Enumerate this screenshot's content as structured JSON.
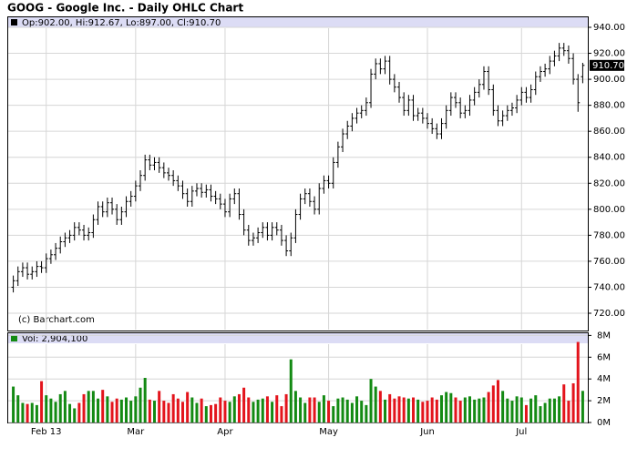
{
  "chart_data": {
    "type": "ohlc",
    "title": "GOOG - Google Inc. - Daily OHLC Chart",
    "legend_text": "Op:902.00, Hi:912.67, Lo:897.00, Cl:910.70",
    "last_price_label": "910.70",
    "credit": "(c) Barchart.com",
    "categories": [
      null,
      null,
      null,
      null,
      null,
      null,
      null,
      "Feb 13",
      null,
      null,
      null,
      null,
      null,
      null,
      null,
      null,
      null,
      null,
      null,
      null,
      null,
      null,
      null,
      null,
      null,
      null,
      "Mar",
      null,
      null,
      null,
      null,
      null,
      null,
      null,
      null,
      null,
      null,
      null,
      null,
      null,
      null,
      null,
      null,
      null,
      null,
      "Apr",
      null,
      null,
      null,
      null,
      null,
      null,
      null,
      null,
      null,
      null,
      null,
      null,
      null,
      null,
      null,
      null,
      null,
      null,
      null,
      null,
      null,
      "May",
      null,
      null,
      null,
      null,
      null,
      null,
      null,
      null,
      null,
      null,
      null,
      null,
      null,
      null,
      null,
      null,
      null,
      null,
      null,
      null,
      "Jun",
      null,
      null,
      null,
      null,
      null,
      null,
      null,
      null,
      null,
      null,
      null,
      null,
      null,
      null,
      null,
      null,
      null,
      null,
      null,
      "Jul",
      null,
      null,
      null,
      null,
      null,
      null,
      null,
      null,
      null,
      null,
      null,
      null,
      null
    ],
    "open": [
      740,
      745,
      752,
      755,
      750,
      752,
      756,
      755,
      762,
      765,
      770,
      775,
      778,
      780,
      786,
      784,
      780,
      782,
      792,
      802,
      798,
      805,
      800,
      792,
      798,
      806,
      810,
      818,
      826,
      838,
      834,
      836,
      832,
      828,
      826,
      822,
      818,
      812,
      806,
      814,
      816,
      813,
      815,
      810,
      808,
      804,
      798,
      808,
      812,
      796,
      784,
      776,
      778,
      782,
      786,
      780,
      786,
      784,
      776,
      768,
      778,
      796,
      808,
      812,
      806,
      800,
      816,
      822,
      820,
      836,
      848,
      858,
      864,
      870,
      874,
      876,
      882,
      904,
      912,
      908,
      914,
      900,
      894,
      886,
      876,
      884,
      872,
      874,
      870,
      866,
      862,
      858,
      866,
      876,
      886,
      882,
      874,
      876,
      884,
      890,
      896,
      906,
      892,
      876,
      868,
      872,
      876,
      878,
      884,
      890,
      886,
      892,
      902,
      906,
      908,
      914,
      918,
      924,
      922,
      916,
      900,
      902
    ],
    "high": [
      749,
      756,
      759,
      759,
      756,
      760,
      760,
      766,
      769,
      774,
      779,
      782,
      784,
      790,
      790,
      788,
      786,
      796,
      806,
      806,
      809,
      809,
      804,
      802,
      810,
      814,
      822,
      830,
      842,
      842,
      840,
      840,
      836,
      832,
      830,
      826,
      822,
      816,
      818,
      820,
      820,
      819,
      819,
      814,
      812,
      808,
      812,
      816,
      816,
      800,
      788,
      782,
      786,
      790,
      790,
      790,
      790,
      788,
      780,
      782,
      800,
      812,
      816,
      816,
      810,
      820,
      826,
      826,
      840,
      852,
      862,
      868,
      874,
      878,
      880,
      886,
      908,
      916,
      916,
      918,
      918,
      904,
      898,
      890,
      888,
      888,
      878,
      878,
      874,
      870,
      866,
      870,
      880,
      890,
      890,
      886,
      880,
      888,
      894,
      900,
      910,
      910,
      896,
      880,
      876,
      880,
      882,
      888,
      894,
      894,
      896,
      906,
      910,
      912,
      918,
      922,
      928,
      928,
      926,
      920,
      904,
      912.67
    ],
    "low": [
      736,
      741,
      748,
      746,
      746,
      748,
      751,
      751,
      758,
      761,
      766,
      771,
      774,
      776,
      780,
      776,
      776,
      778,
      788,
      794,
      794,
      796,
      788,
      788,
      794,
      802,
      806,
      814,
      822,
      830,
      830,
      828,
      824,
      822,
      818,
      814,
      808,
      802,
      802,
      810,
      809,
      809,
      806,
      804,
      800,
      794,
      794,
      804,
      792,
      780,
      772,
      772,
      774,
      778,
      776,
      776,
      780,
      772,
      764,
      764,
      774,
      792,
      804,
      802,
      796,
      796,
      812,
      816,
      816,
      832,
      844,
      854,
      860,
      866,
      870,
      872,
      878,
      900,
      904,
      904,
      896,
      890,
      882,
      872,
      872,
      868,
      868,
      866,
      862,
      858,
      854,
      854,
      862,
      872,
      878,
      870,
      870,
      872,
      880,
      886,
      892,
      888,
      872,
      864,
      864,
      868,
      872,
      874,
      880,
      882,
      882,
      888,
      898,
      902,
      904,
      910,
      914,
      918,
      912,
      896,
      875,
      897
    ],
    "close": [
      745,
      752,
      755,
      750,
      752,
      756,
      755,
      762,
      765,
      770,
      775,
      778,
      780,
      786,
      784,
      780,
      782,
      792,
      802,
      798,
      805,
      800,
      792,
      798,
      806,
      810,
      818,
      826,
      838,
      834,
      836,
      832,
      828,
      826,
      822,
      818,
      812,
      806,
      814,
      816,
      813,
      815,
      810,
      808,
      804,
      798,
      808,
      812,
      796,
      784,
      776,
      778,
      782,
      786,
      780,
      786,
      784,
      776,
      768,
      778,
      796,
      808,
      812,
      806,
      800,
      816,
      822,
      820,
      836,
      848,
      858,
      864,
      870,
      874,
      876,
      882,
      904,
      912,
      908,
      914,
      900,
      894,
      886,
      876,
      884,
      872,
      874,
      870,
      866,
      862,
      858,
      866,
      876,
      886,
      882,
      874,
      876,
      884,
      890,
      896,
      906,
      892,
      876,
      868,
      872,
      876,
      878,
      884,
      890,
      886,
      892,
      902,
      906,
      908,
      914,
      918,
      924,
      922,
      916,
      900,
      882,
      910.7
    ],
    "bar_color": "#000000",
    "ylim": [
      707.4,
      947
    ],
    "yticks": [
      {
        "value": 720,
        "label": "720.00"
      },
      {
        "value": 740,
        "label": "740.00"
      },
      {
        "value": 760,
        "label": "760.00"
      },
      {
        "value": 780,
        "label": "780.00"
      },
      {
        "value": 800,
        "label": "800.00"
      },
      {
        "value": 820,
        "label": "820.00"
      },
      {
        "value": 840,
        "label": "840.00"
      },
      {
        "value": 860,
        "label": "860.00"
      },
      {
        "value": 880,
        "label": "880.00"
      },
      {
        "value": 900,
        "label": "900.00"
      },
      {
        "value": 920,
        "label": "920.00"
      },
      {
        "value": 940,
        "label": "940.00"
      }
    ],
    "grid": true,
    "volume": {
      "legend_text": "Vol: 2,904,100",
      "up_color": "#138a13",
      "down_color": "#e3141c",
      "values": [
        3.3,
        2.5,
        1.8,
        1.7,
        1.8,
        1.6,
        3.8,
        2.5,
        2.2,
        1.9,
        2.6,
        2.9,
        1.7,
        1.3,
        1.8,
        2.6,
        2.9,
        2.9,
        2.2,
        3.0,
        2.4,
        1.9,
        2.2,
        2.1,
        2.3,
        2.0,
        2.4,
        3.2,
        4.1,
        2.1,
        2.0,
        2.9,
        2.0,
        1.8,
        2.6,
        2.2,
        1.9,
        2.8,
        2.3,
        1.8,
        2.2,
        1.5,
        1.6,
        1.7,
        2.3,
        2.0,
        1.9,
        2.4,
        2.6,
        3.2,
        2.3,
        1.9,
        2.1,
        2.2,
        2.4,
        1.9,
        2.5,
        1.5,
        2.6,
        5.8,
        2.9,
        2.3,
        1.8,
        2.3,
        2.3,
        1.9,
        2.5,
        2.0,
        1.5,
        2.2,
        2.3,
        2.1,
        1.8,
        2.4,
        2.0,
        1.6,
        4.0,
        3.3,
        2.9,
        2.1,
        2.6,
        2.2,
        2.4,
        2.3,
        2.2,
        2.3,
        2.1,
        1.9,
        2.0,
        2.3,
        2.1,
        2.5,
        2.8,
        2.7,
        2.3,
        2.0,
        2.3,
        2.4,
        2.1,
        2.2,
        2.3,
        2.8,
        3.4,
        3.9,
        2.9,
        2.2,
        2.0,
        2.4,
        2.3,
        1.6,
        2.2,
        2.5,
        1.5,
        1.8,
        2.2,
        2.2,
        2.4,
        3.5,
        2.0,
        3.6,
        7.4,
        2.9041
      ],
      "ylim": [
        0,
        8.2
      ],
      "yticks": [
        {
          "value": 0,
          "label": "0M"
        },
        {
          "value": 2,
          "label": "2M"
        },
        {
          "value": 4,
          "label": "4M"
        },
        {
          "value": 6,
          "label": "6M"
        },
        {
          "value": 8,
          "label": "8M"
        }
      ]
    }
  }
}
